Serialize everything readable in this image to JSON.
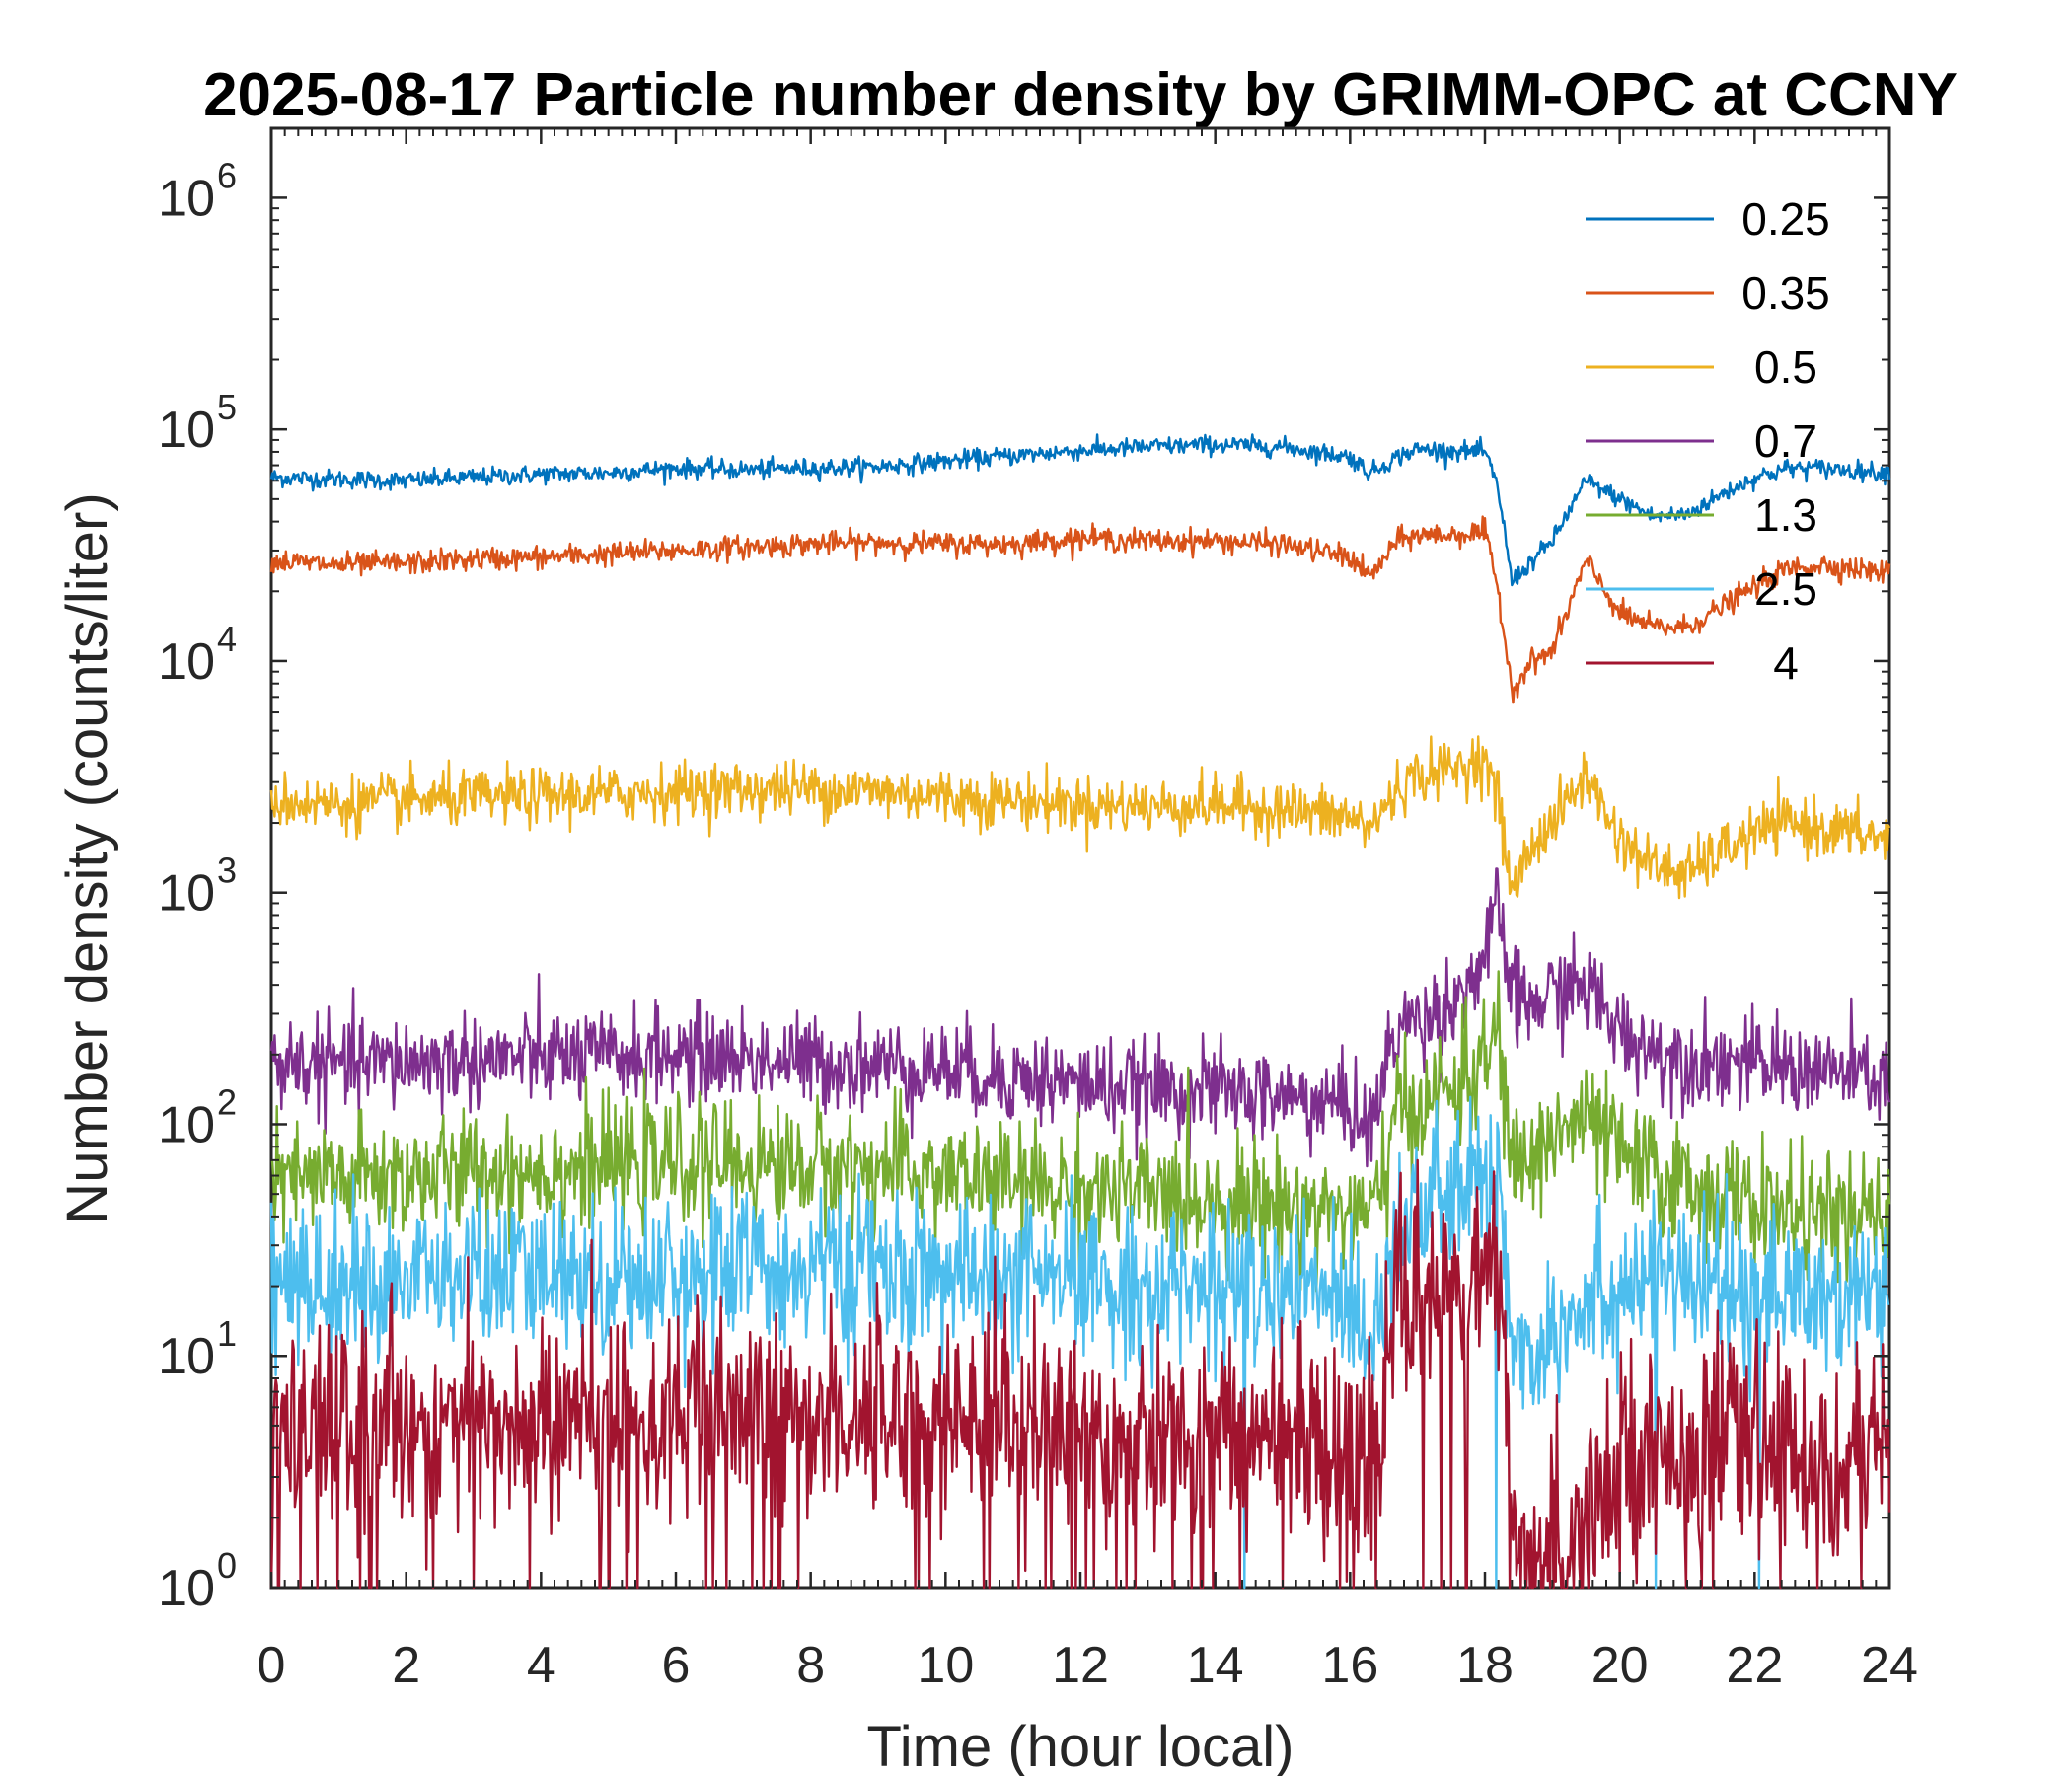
{
  "chart_data": {
    "type": "line",
    "title": "2025-08-17 Particle number density by GRIMM-OPC at CCNY",
    "xlabel": "Time (hour local)",
    "ylabel": "Number density (counts/liter)",
    "xlim": [
      0,
      24
    ],
    "ylim": [
      1,
      2000000
    ],
    "yscale": "log",
    "x_ticks": [
      "0",
      "2",
      "4",
      "6",
      "8",
      "10",
      "12",
      "14",
      "16",
      "18",
      "20",
      "22",
      "24"
    ],
    "y_ticks": [
      {
        "base": "10",
        "exp": "0"
      },
      {
        "base": "10",
        "exp": "1"
      },
      {
        "base": "10",
        "exp": "2"
      },
      {
        "base": "10",
        "exp": "3"
      },
      {
        "base": "10",
        "exp": "4"
      },
      {
        "base": "10",
        "exp": "5"
      },
      {
        "base": "10",
        "exp": "6"
      }
    ],
    "legend_position": "top-right",
    "x": [
      0,
      1,
      2,
      3,
      4,
      5,
      6,
      7,
      8,
      9,
      10,
      11,
      12,
      13,
      14,
      15,
      16,
      16.3,
      16.7,
      17,
      17.5,
      18,
      18.2,
      18.4,
      18.7,
      19,
      19.5,
      20,
      20.5,
      21,
      21.5,
      22,
      22.5,
      23,
      24
    ],
    "series": [
      {
        "name": "0.25",
        "color": "#0072BD",
        "noise": 0.02,
        "values": [
          62000,
          61000,
          60000,
          62000,
          64000,
          65000,
          68000,
          67000,
          68000,
          69000,
          73000,
          77000,
          81000,
          84000,
          86000,
          84000,
          76000,
          65000,
          76000,
          82000,
          81000,
          80000,
          55000,
          22000,
          27000,
          33000,
          60000,
          50000,
          42000,
          43000,
          52000,
          62000,
          68000,
          68000,
          65000
        ]
      },
      {
        "name": "0.35",
        "color": "#D95319",
        "noise": 0.025,
        "values": [
          27000,
          26000,
          26500,
          27500,
          28000,
          29000,
          30000,
          31000,
          32000,
          32500,
          32000,
          32000,
          34000,
          33000,
          33000,
          32000,
          28000,
          23000,
          33000,
          35000,
          35000,
          36000,
          20000,
          7500,
          10000,
          11000,
          27000,
          16000,
          14000,
          14000,
          17000,
          21000,
          25000,
          26000,
          24000
        ]
      },
      {
        "name": "0.5",
        "color": "#EDB120",
        "noise": 0.06,
        "values": [
          2500,
          2400,
          2500,
          2550,
          2600,
          2650,
          2750,
          2800,
          2800,
          2750,
          2600,
          2500,
          2400,
          2350,
          2400,
          2300,
          2100,
          1900,
          2800,
          3200,
          3400,
          3800,
          2500,
          1000,
          1600,
          2000,
          3200,
          1700,
          1300,
          1200,
          1500,
          1800,
          2000,
          1900,
          1700
        ]
      },
      {
        "name": "0.7",
        "color": "#7E2F8E",
        "noise": 0.1,
        "values": [
          185,
          180,
          185,
          190,
          195,
          195,
          200,
          195,
          185,
          180,
          175,
          160,
          150,
          140,
          140,
          130,
          120,
          95,
          270,
          280,
          330,
          500,
          900,
          350,
          320,
          370,
          400,
          250,
          210,
          190,
          190,
          180,
          175,
          170,
          155
        ]
      },
      {
        "name": "1.3",
        "color": "#77AC30",
        "noise": 0.13,
        "values": [
          55,
          58,
          60,
          62,
          64,
          66,
          68,
          68,
          66,
          64,
          60,
          55,
          52,
          50,
          48,
          45,
          42,
          38,
          110,
          120,
          140,
          180,
          260,
          65,
          70,
          90,
          105,
          75,
          60,
          55,
          50,
          45,
          42,
          40,
          38
        ]
      },
      {
        "name": "2.5",
        "color": "#4DBEEE",
        "noise": 0.17,
        "values": [
          20,
          20,
          21,
          22,
          22,
          22,
          23,
          24,
          24,
          23,
          22,
          21,
          20,
          20,
          20,
          19,
          18,
          12,
          38,
          42,
          48,
          55,
          65,
          12,
          10,
          14,
          18,
          20,
          22,
          20,
          19,
          19,
          18,
          18,
          17
        ]
      },
      {
        "name": "4",
        "color": "#A2142F",
        "noise": 0.22,
        "values": [
          4.5,
          4.8,
          5.0,
          5.0,
          5.0,
          5.2,
          5.4,
          5.5,
          5.6,
          5.6,
          5.5,
          5.3,
          5.0,
          4.8,
          4.6,
          4.4,
          4.2,
          3.0,
          16,
          18,
          20,
          22,
          24,
          1.5,
          1.0,
          1.5,
          2.2,
          3.5,
          4.0,
          4.2,
          4.2,
          4.0,
          3.8,
          3.6,
          3.4
        ]
      }
    ]
  }
}
